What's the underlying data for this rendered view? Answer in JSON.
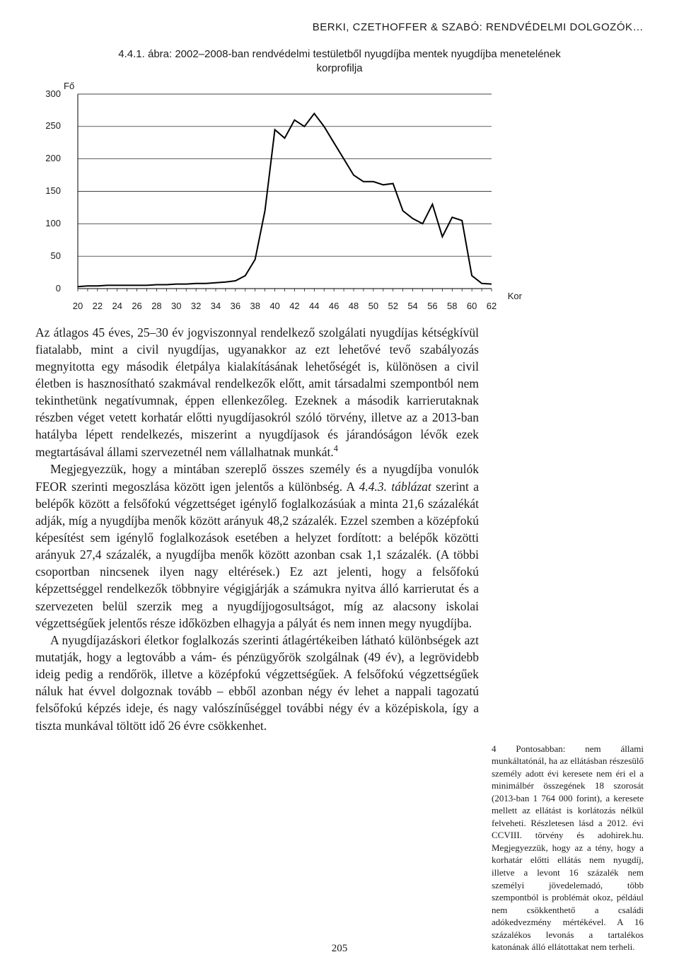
{
  "header": "BERKI, CZETHOFFER & SZABÓ: RENDVÉDELMI DOLGOZÓK…",
  "figure": {
    "caption": "4.4.1. ábra: 2002–2008-ban rendvédelmi testületből nyugdíjba mentek nyugdíjba menetelének korprofilja",
    "type": "line",
    "y_label": "Fő",
    "x_label": "Kor",
    "y_ticks": [
      0,
      50,
      100,
      150,
      200,
      250,
      300
    ],
    "x_ticks": [
      20,
      22,
      24,
      26,
      28,
      30,
      32,
      34,
      36,
      38,
      40,
      42,
      44,
      46,
      48,
      50,
      52,
      54,
      56,
      58,
      60,
      62
    ],
    "ylim": [
      0,
      300
    ],
    "xlim": [
      20,
      62
    ],
    "line_color": "#000000",
    "line_width": 2,
    "background_color": "#ffffff",
    "grid_color": "#000000",
    "tick_fontsize": 13,
    "label_fontsize": 13,
    "data": [
      {
        "x": 20,
        "y": 3
      },
      {
        "x": 21,
        "y": 4
      },
      {
        "x": 22,
        "y": 4
      },
      {
        "x": 23,
        "y": 5
      },
      {
        "x": 24,
        "y": 5
      },
      {
        "x": 25,
        "y": 5
      },
      {
        "x": 26,
        "y": 5
      },
      {
        "x": 27,
        "y": 5
      },
      {
        "x": 28,
        "y": 6
      },
      {
        "x": 29,
        "y": 6
      },
      {
        "x": 30,
        "y": 7
      },
      {
        "x": 31,
        "y": 7
      },
      {
        "x": 32,
        "y": 8
      },
      {
        "x": 33,
        "y": 8
      },
      {
        "x": 34,
        "y": 9
      },
      {
        "x": 35,
        "y": 10
      },
      {
        "x": 36,
        "y": 12
      },
      {
        "x": 37,
        "y": 20
      },
      {
        "x": 38,
        "y": 45
      },
      {
        "x": 39,
        "y": 120
      },
      {
        "x": 40,
        "y": 245
      },
      {
        "x": 41,
        "y": 232
      },
      {
        "x": 42,
        "y": 260
      },
      {
        "x": 43,
        "y": 250
      },
      {
        "x": 44,
        "y": 270
      },
      {
        "x": 45,
        "y": 250
      },
      {
        "x": 46,
        "y": 225
      },
      {
        "x": 47,
        "y": 200
      },
      {
        "x": 48,
        "y": 175
      },
      {
        "x": 49,
        "y": 165
      },
      {
        "x": 50,
        "y": 165
      },
      {
        "x": 51,
        "y": 160
      },
      {
        "x": 52,
        "y": 162
      },
      {
        "x": 53,
        "y": 120
      },
      {
        "x": 54,
        "y": 108
      },
      {
        "x": 55,
        "y": 100
      },
      {
        "x": 56,
        "y": 130
      },
      {
        "x": 57,
        "y": 80
      },
      {
        "x": 58,
        "y": 110
      },
      {
        "x": 59,
        "y": 105
      },
      {
        "x": 60,
        "y": 20
      },
      {
        "x": 61,
        "y": 8
      },
      {
        "x": 62,
        "y": 7
      }
    ]
  },
  "body": {
    "p1": "Az átlagos 45 éves, 25–30 év jogviszonnyal rendelkező szolgálati nyugdíjas kétségkívül fiatalabb, mint a civil nyugdíjas, ugyanakkor az ezt lehetővé tevő szabályozás megnyitotta egy második életpálya kialakításának lehetőségét is, különösen a civil életben is hasznosítható szakmával rendelkezők előtt, amit társadalmi szempontból nem tekinthetünk negatívumnak, éppen ellenkezőleg. Ezeknek a második karrierutaknak részben véget vetett korhatár előtti nyugdíjasokról szóló törvény, illetve az a 2013-ban hatályba lépett rendelkezés, miszerint a nyugdíjasok és járandóságon lévők ezek megtartásával állami szervezetnél nem vállalhatnak munkát.",
    "p1_sup": "4",
    "p2a": "Megjegyezzük, hogy a mintában szereplő összes személy és a nyugdíjba vonulók FEOR szerinti megoszlása között igen jelentős a különbség. A ",
    "p2i": "4.4.3. táblázat",
    "p2b": " szerint a belépők között a felsőfokú végzettséget igénylő foglalkozásúak a minta 21,6 százalékát adják, míg a nyugdíjba menők között arányuk 48,2 százalék. Ezzel szemben a középfokú képesítést sem igénylő foglalkozások esetében a helyzet fordított: a belépők közötti arányuk 27,4 százalék, a nyugdíjba menők között azonban csak 1,1 százalék. (A többi csoportban nincsenek ilyen nagy eltérések.) Ez azt jelenti, hogy a felsőfokú képzettséggel rendelkezők többnyire végigjárják a számukra nyitva álló karrierutat és a szervezeten belül szerzik meg a nyugdíjjogosultságot, míg az alacsony iskolai végzettségűek jelentős része időközben elhagyja a pályát és nem innen megy nyugdíjba.",
    "p3": "A nyugdíjazáskori életkor foglalkozás szerinti átlagértékeiben látható különbségek azt mutatják, hogy a legtovább a vám- és pénzügyőrök szolgálnak (49 év), a legrövidebb ideig pedig a rendőrök, illetve a középfokú végzettségűek. A felsőfokú végzettségűek náluk hat évvel dolgoznak tovább – ebből azonban négy év lehet a nappali tagozatú felsőfokú képzés ideje, és nagy valószínűséggel további négy év a középiskola, így a tiszta munkával töltött idő 26 évre csökkenhet."
  },
  "footnote": {
    "text": "4 Pontosabban: nem állami munkáltatónál, ha az ellátásban részesülő személy adott évi keresete nem éri el a minimálbér összegének 18 szorosát (2013-ban 1 764 000 forint), a keresete mellett az ellátást is korlátozás nélkül felveheti. Részletesen lásd a 2012. évi CCVIII. törvény és adohirek.hu. Megjegyezzük, hogy az a tény, hogy a korhatár előtti ellátás nem nyugdíj, illetve a levont 16 százalék nem személyi jövedelemadó, több szempontból is problémát okoz, például nem csökkenthető a családi adókedvezmény mértékével. A 16 százalékos levonás a tartalékos katonának álló ellátottakat nem terheli."
  },
  "page_number": "205"
}
